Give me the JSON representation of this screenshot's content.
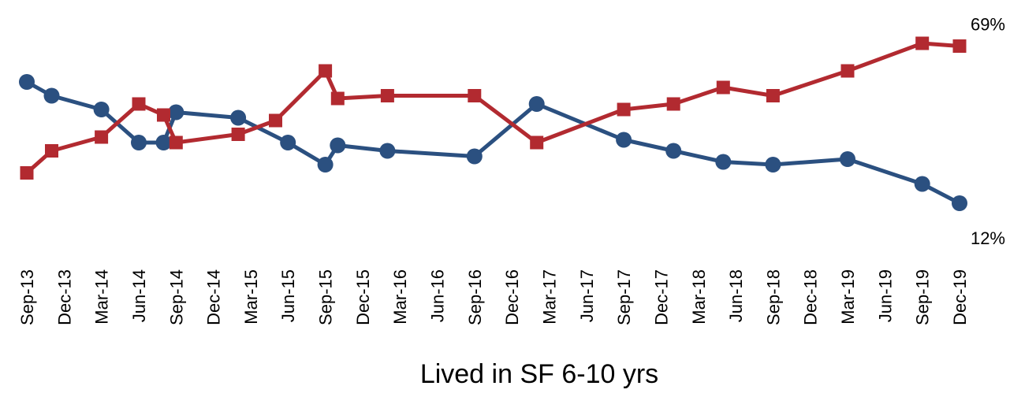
{
  "chart_data": {
    "type": "line",
    "title": "",
    "xlabel": "Lived in SF 6-10 yrs",
    "ylabel": "",
    "ylim": [
      0,
      80
    ],
    "grid": false,
    "legend": "none",
    "x_ticks": [
      "Sep-13",
      "Dec-13",
      "Mar-14",
      "Jun-14",
      "Sep-14",
      "Dec-14",
      "Mar-15",
      "Jun-15",
      "Sep-15",
      "Dec-15",
      "Mar-16",
      "Jun-16",
      "Sep-16",
      "Dec-16",
      "Mar-17",
      "Jun-17",
      "Sep-17",
      "Dec-17",
      "Mar-18",
      "Jun-18",
      "Sep-18",
      "Dec-18",
      "Mar-19",
      "Jun-19",
      "Sep-19",
      "Dec-19"
    ],
    "series": [
      {
        "color": "#2b5080",
        "marker": "circle",
        "points": [
          {
            "x": "2013-09",
            "y": 56
          },
          {
            "x": "2013-11",
            "y": 51
          },
          {
            "x": "2014-03",
            "y": 46
          },
          {
            "x": "2014-06",
            "y": 34
          },
          {
            "x": "2014-08",
            "y": 34
          },
          {
            "x": "2014-09",
            "y": 45
          },
          {
            "x": "2015-02",
            "y": 43
          },
          {
            "x": "2015-06",
            "y": 34
          },
          {
            "x": "2015-09",
            "y": 26
          },
          {
            "x": "2015-10",
            "y": 33
          },
          {
            "x": "2016-02",
            "y": 31
          },
          {
            "x": "2016-09",
            "y": 29
          },
          {
            "x": "2017-02",
            "y": 48
          },
          {
            "x": "2017-09",
            "y": 35
          },
          {
            "x": "2018-01",
            "y": 31
          },
          {
            "x": "2018-05",
            "y": 27
          },
          {
            "x": "2018-09",
            "y": 26
          },
          {
            "x": "2019-03",
            "y": 28
          },
          {
            "x": "2019-09",
            "y": 19
          },
          {
            "x": "2019-12",
            "y": 12
          }
        ],
        "end_label": "12%"
      },
      {
        "color": "#b22a30",
        "marker": "square",
        "points": [
          {
            "x": "2013-09",
            "y": 23
          },
          {
            "x": "2013-11",
            "y": 31
          },
          {
            "x": "2014-03",
            "y": 36
          },
          {
            "x": "2014-06",
            "y": 48
          },
          {
            "x": "2014-08",
            "y": 44
          },
          {
            "x": "2014-09",
            "y": 34
          },
          {
            "x": "2015-02",
            "y": 37
          },
          {
            "x": "2015-05",
            "y": 42
          },
          {
            "x": "2015-09",
            "y": 60
          },
          {
            "x": "2015-10",
            "y": 50
          },
          {
            "x": "2016-02",
            "y": 51
          },
          {
            "x": "2016-09",
            "y": 51
          },
          {
            "x": "2017-02",
            "y": 34
          },
          {
            "x": "2017-09",
            "y": 46
          },
          {
            "x": "2018-01",
            "y": 48
          },
          {
            "x": "2018-05",
            "y": 54
          },
          {
            "x": "2018-09",
            "y": 51
          },
          {
            "x": "2019-03",
            "y": 60
          },
          {
            "x": "2019-09",
            "y": 70
          },
          {
            "x": "2019-12",
            "y": 69
          }
        ],
        "end_label": "69%"
      }
    ]
  }
}
